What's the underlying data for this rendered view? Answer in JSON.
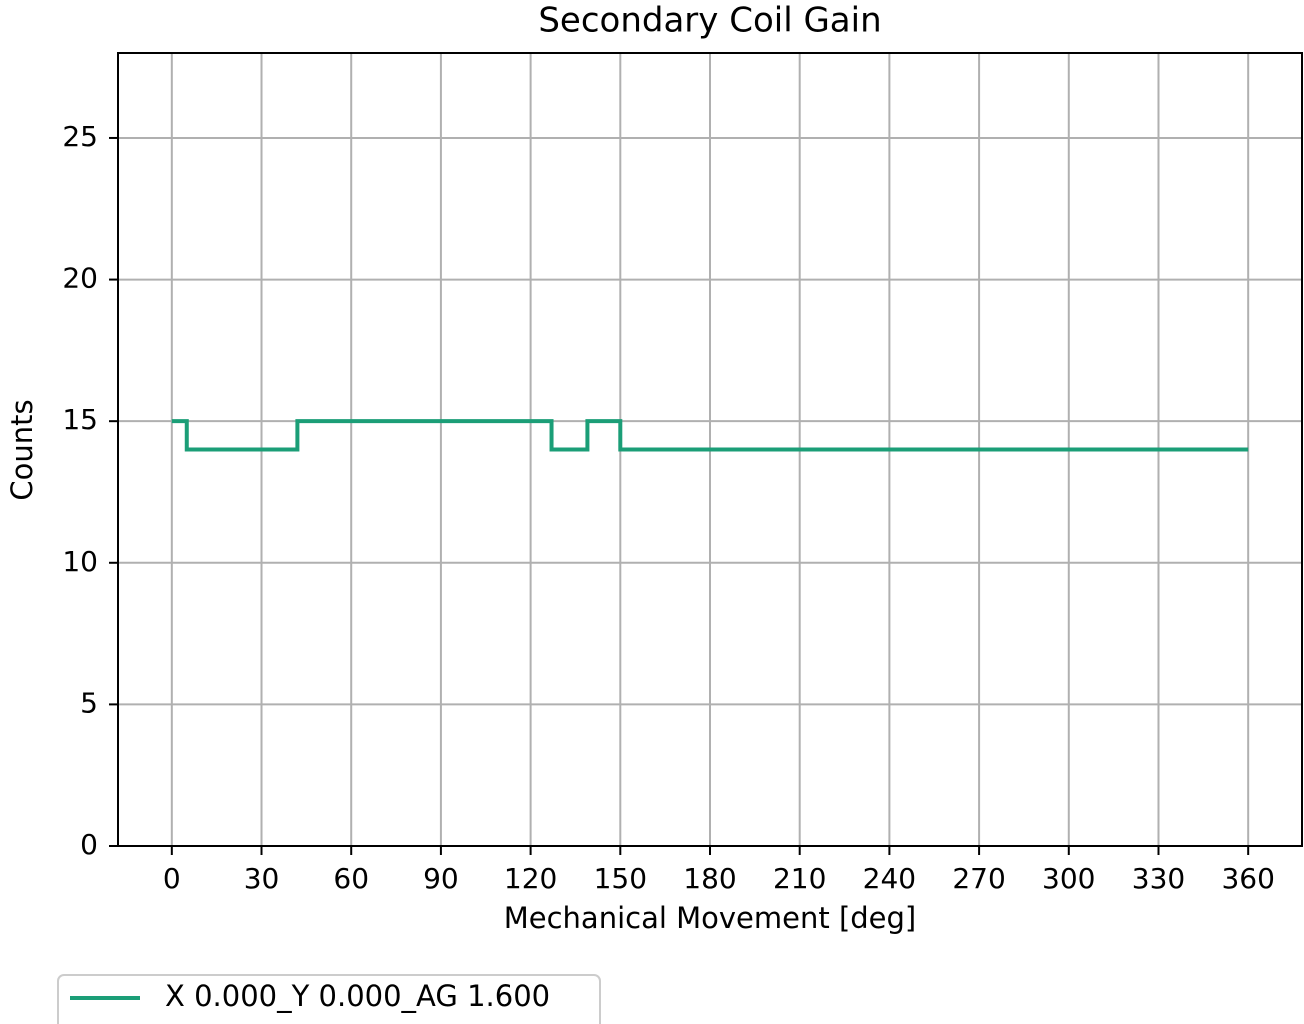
{
  "chart_data": {
    "type": "line",
    "title": "Secondary Coil Gain",
    "x_label": "Mechanical Movement [deg]",
    "y_label": "Counts",
    "x": [
      0,
      5,
      5,
      42,
      42,
      127,
      127,
      139,
      139,
      150,
      150,
      360
    ],
    "series": [
      {
        "name": "X 0.000_Y 0.000_AG 1.600",
        "color": "#1b9e77",
        "values": [
          15,
          15,
          14,
          14,
          15,
          15,
          14,
          14,
          15,
          15,
          14,
          14
        ]
      }
    ],
    "xlim": [
      -18,
      378
    ],
    "xticks": [
      0,
      30,
      60,
      90,
      120,
      150,
      180,
      210,
      240,
      270,
      300,
      330,
      360
    ],
    "ylim": [
      0,
      28
    ],
    "yticks": [
      0,
      5,
      10,
      15,
      20,
      25
    ],
    "grid": true,
    "legend": "below-left"
  }
}
